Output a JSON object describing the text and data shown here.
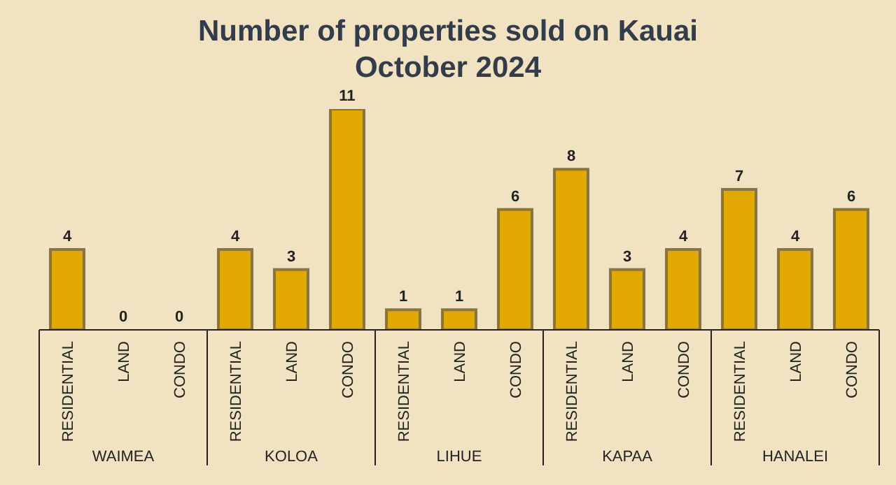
{
  "chart_data": {
    "type": "bar",
    "title": "Number of properties sold on Kauai",
    "subtitle": "October 2024",
    "categories": [
      "RESIDENTIAL",
      "LAND",
      "CONDO",
      "RESIDENTIAL",
      "LAND",
      "CONDO",
      "RESIDENTIAL",
      "LAND",
      "CONDO",
      "RESIDENTIAL",
      "LAND",
      "CONDO",
      "RESIDENTIAL",
      "LAND",
      "CONDO"
    ],
    "values": [
      4,
      0,
      0,
      4,
      3,
      11,
      1,
      1,
      6,
      8,
      3,
      4,
      7,
      4,
      6
    ],
    "color": "#e0a800",
    "ylim": [
      0,
      11
    ],
    "tick_labels": "x",
    "data_labels": true,
    "annotations": [
      "WAIMEA",
      "KOLOA",
      "LIHUE",
      "KAPAA",
      "HANALEI"
    ]
  }
}
